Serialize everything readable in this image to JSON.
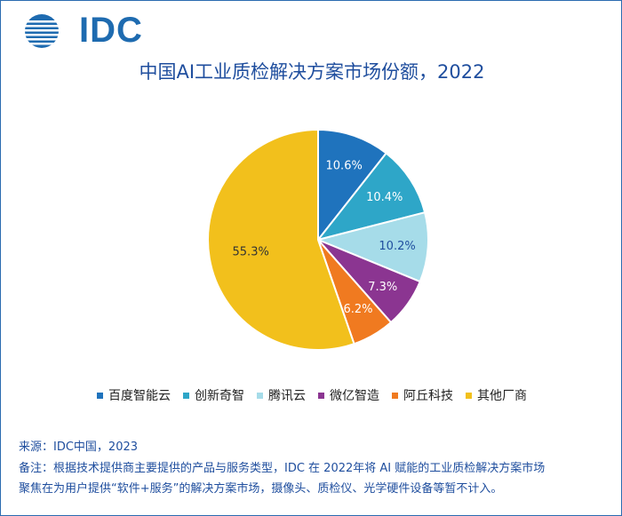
{
  "brand": {
    "logo_text": "IDC"
  },
  "chart_data": {
    "type": "pie",
    "title": "中国AI工业质检解决方案市场份额，2022",
    "slices": [
      {
        "label": "百度智能云",
        "value": 10.6,
        "display": "10.6%",
        "color": "#1f73bd"
      },
      {
        "label": "创新奇智",
        "value": 10.4,
        "display": "10.4%",
        "color": "#2ea6c8"
      },
      {
        "label": "腾讯云",
        "value": 10.2,
        "display": "10.2%",
        "color": "#a6dce9"
      },
      {
        "label": "微亿智造",
        "value": 7.3,
        "display": "7.3%",
        "color": "#8b3591"
      },
      {
        "label": "阿丘科技",
        "value": 6.2,
        "display": "6.2%",
        "color": "#f07a20"
      },
      {
        "label": "其他厂商",
        "value": 55.3,
        "display": "55.3%",
        "color": "#f2c01c"
      }
    ],
    "legend_position": "bottom"
  },
  "footer": {
    "source": "来源：IDC中国，2023",
    "note_line1": "备注：根据技术提供商主要提供的产品与服务类型，IDC 在 2022年将 AI 赋能的工业质检解决方案市场",
    "note_line2": "聚焦在为用户提供“软件+服务”的解决方案市场，摄像头、质检仪、光学硬件设备等暂不计入。"
  }
}
